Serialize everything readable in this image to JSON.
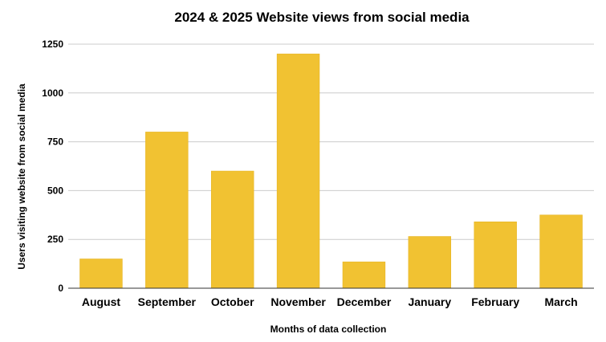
{
  "chart_data": {
    "type": "bar",
    "title": "2024 & 2025 Website views from social media",
    "xlabel": "Months of data collection",
    "ylabel": "Users visiting website from social media",
    "categories": [
      "August",
      "September",
      "October",
      "November",
      "December",
      "January",
      "February",
      "March"
    ],
    "values": [
      150,
      800,
      600,
      1200,
      135,
      265,
      340,
      375
    ],
    "ylim": [
      0,
      1250
    ],
    "yticks": [
      "0",
      "250",
      "500",
      "750",
      "1000",
      "1250"
    ],
    "grid": true,
    "legend": "none",
    "bar_color": "#f1c232"
  }
}
